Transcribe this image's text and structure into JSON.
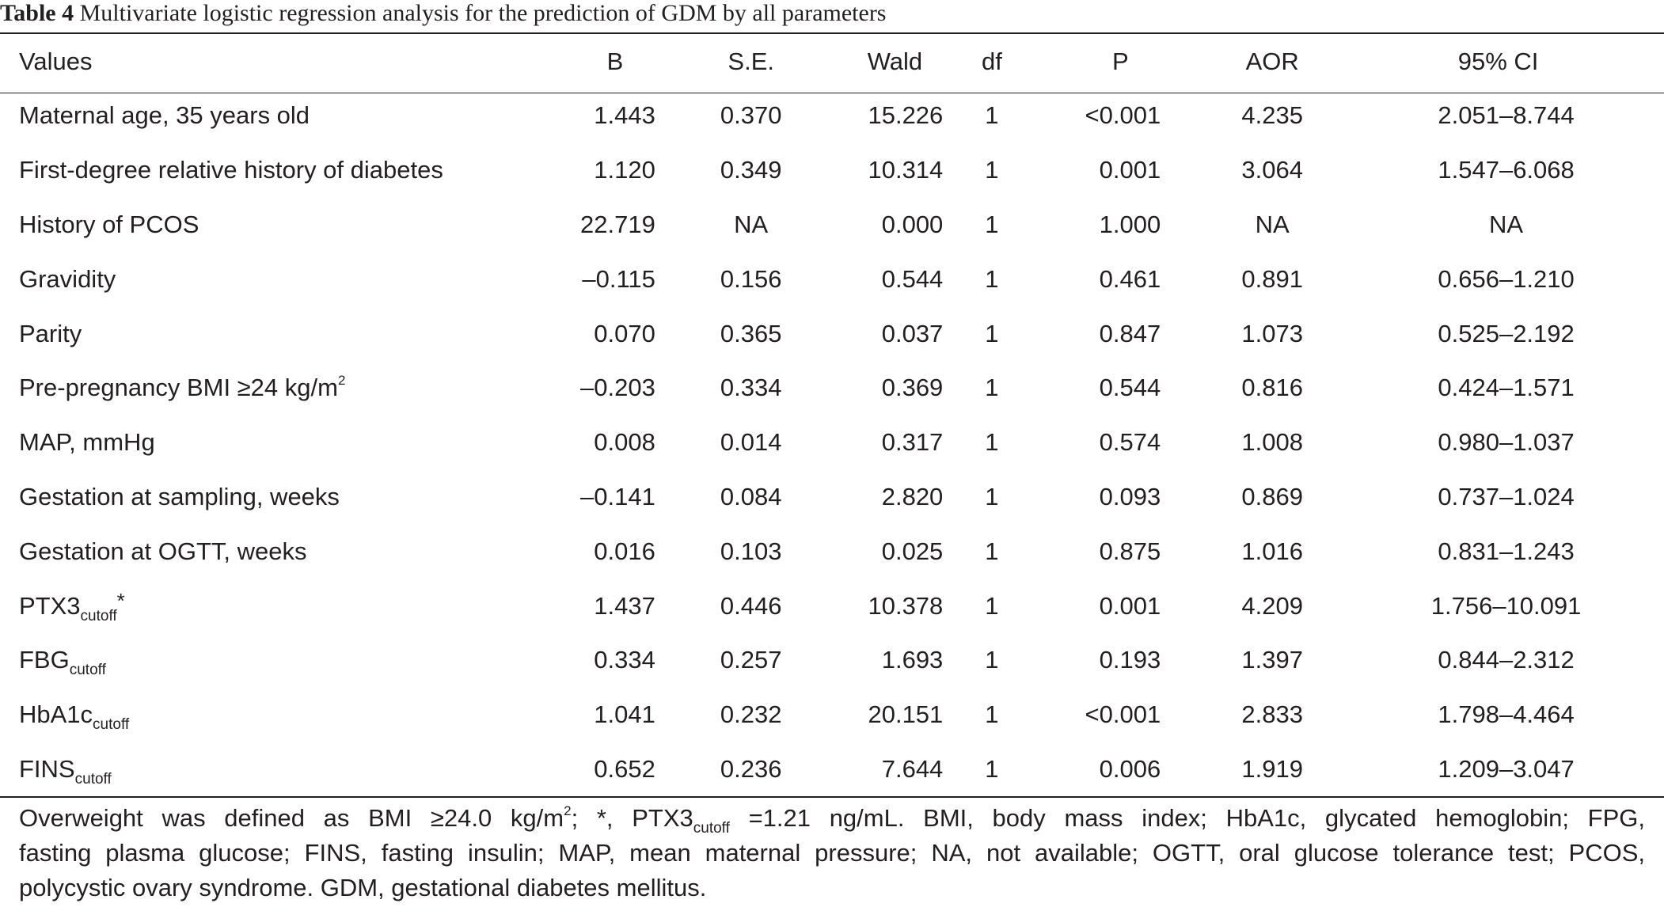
{
  "caption": {
    "label": "Table 4",
    "title": "Multivariate logistic regression analysis for the prediction of GDM by all parameters"
  },
  "table": {
    "headers": [
      "Values",
      "B",
      "S.E.",
      "Wald",
      "df",
      "P",
      "AOR",
      "95% CI"
    ],
    "rows": [
      {
        "label": "Maternal age, 35 years old",
        "b": "1.443",
        "se": "0.370",
        "wald": "15.226",
        "df": "1",
        "p": "<0.001",
        "aor": "4.235",
        "ci": "2.051–8.744"
      },
      {
        "label": "First-degree relative history of diabetes",
        "b": "1.120",
        "se": "0.349",
        "wald": "10.314",
        "df": "1",
        "p": "0.001",
        "aor": "3.064",
        "ci": "1.547–6.068"
      },
      {
        "label": "History of PCOS",
        "b": "22.719",
        "se": "NA",
        "wald": "0.000",
        "df": "1",
        "p": "1.000",
        "aor": "NA",
        "ci": "NA"
      },
      {
        "label": "Gravidity",
        "b": "–0.115",
        "se": "0.156",
        "wald": "0.544",
        "df": "1",
        "p": "0.461",
        "aor": "0.891",
        "ci": "0.656–1.210"
      },
      {
        "label": "Parity",
        "b": "0.070",
        "se": "0.365",
        "wald": "0.037",
        "df": "1",
        "p": "0.847",
        "aor": "1.073",
        "ci": "0.525–2.192"
      },
      {
        "label": "Pre-pregnancy BMI ≥24 kg/m",
        "label_sup": "2",
        "b": "–0.203",
        "se": "0.334",
        "wald": "0.369",
        "df": "1",
        "p": "0.544",
        "aor": "0.816",
        "ci": "0.424–1.571"
      },
      {
        "label": "MAP, mmHg",
        "b": "0.008",
        "se": "0.014",
        "wald": "0.317",
        "df": "1",
        "p": "0.574",
        "aor": "1.008",
        "ci": "0.980–1.037"
      },
      {
        "label": "Gestation at sampling, weeks",
        "b": "–0.141",
        "se": "0.084",
        "wald": "2.820",
        "df": "1",
        "p": "0.093",
        "aor": "0.869",
        "ci": "0.737–1.024"
      },
      {
        "label": "Gestation at OGTT, weeks",
        "b": "0.016",
        "se": "0.103",
        "wald": "0.025",
        "df": "1",
        "p": "0.875",
        "aor": "1.016",
        "ci": "0.831–1.243"
      },
      {
        "label": "PTX3",
        "label_sub": "cutoff",
        "label_after": "*",
        "b": "1.437",
        "se": "0.446",
        "wald": "10.378",
        "df": "1",
        "p": "0.001",
        "aor": "4.209",
        "ci": "1.756–10.091"
      },
      {
        "label": "FBG",
        "label_sub": "cutoff",
        "b": "0.334",
        "se": "0.257",
        "wald": "1.693",
        "df": "1",
        "p": "0.193",
        "aor": "1.397",
        "ci": "0.844–2.312"
      },
      {
        "label": "HbA1c",
        "label_sub": "cutoff",
        "b": "1.041",
        "se": "0.232",
        "wald": "20.151",
        "df": "1",
        "p": "<0.001",
        "aor": "2.833",
        "ci": "1.798–4.464"
      },
      {
        "label": "FINS",
        "label_sub": "cutoff",
        "b": "0.652",
        "se": "0.236",
        "wald": "7.644",
        "df": "1",
        "p": "0.006",
        "aor": "1.919",
        "ci": "1.209–3.047"
      }
    ]
  },
  "footnote": {
    "line1_a": "Overweight was defined as BMI ≥24.0 kg/m",
    "line1_sup": "2",
    "line1_b": "; *, PTX3",
    "line1_sub": "cutoff",
    "line1_c": " =1.21 ng/mL. BMI, body mass index; HbA1c, glycated hemoglobin; FPG,",
    "line2": "fasting plasma glucose; FINS, fasting insulin; MAP, mean maternal pressure; NA, not available; OGTT, oral glucose tolerance test; PCOS,",
    "line3": "polycystic ovary syndrome. GDM, gestational diabetes mellitus."
  }
}
